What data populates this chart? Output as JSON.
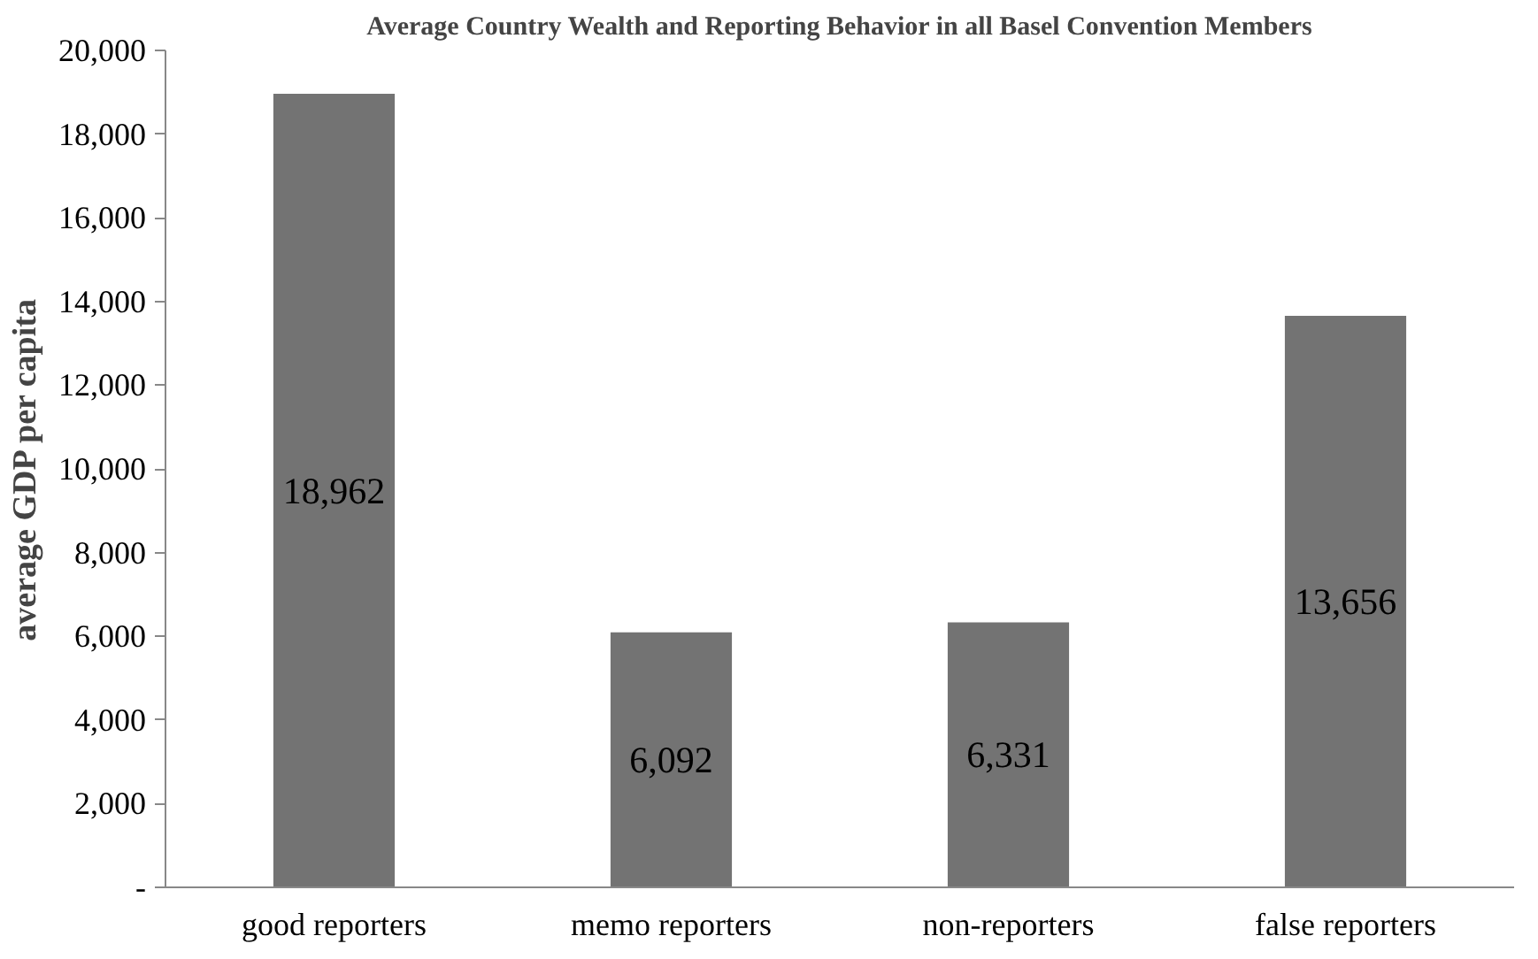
{
  "chart_data": {
    "type": "bar",
    "title": "Average Country Wealth and Reporting Behavior in all Basel Convention Members",
    "ylabel": "average GDP per capita",
    "categories": [
      "good reporters",
      "memo reporters",
      "non-reporters",
      "false reporters"
    ],
    "values": [
      18962,
      6092,
      6331,
      13656
    ],
    "color": "#737373",
    "value_labels": [
      "18,962",
      "6,092",
      "6,331",
      "13,656"
    ],
    "ylim": [
      0,
      20000
    ],
    "yticks": [
      {
        "value": 0,
        "label": "-"
      },
      {
        "value": 2000,
        "label": "2,000"
      },
      {
        "value": 4000,
        "label": "4,000"
      },
      {
        "value": 6000,
        "label": "6,000"
      },
      {
        "value": 8000,
        "label": "8,000"
      },
      {
        "value": 10000,
        "label": "10,000"
      },
      {
        "value": 12000,
        "label": "12,000"
      },
      {
        "value": 14000,
        "label": "14,000"
      },
      {
        "value": 16000,
        "label": "16,000"
      },
      {
        "value": 18000,
        "label": "18,000"
      },
      {
        "value": 20000,
        "label": "20,000"
      }
    ],
    "grid": false
  }
}
